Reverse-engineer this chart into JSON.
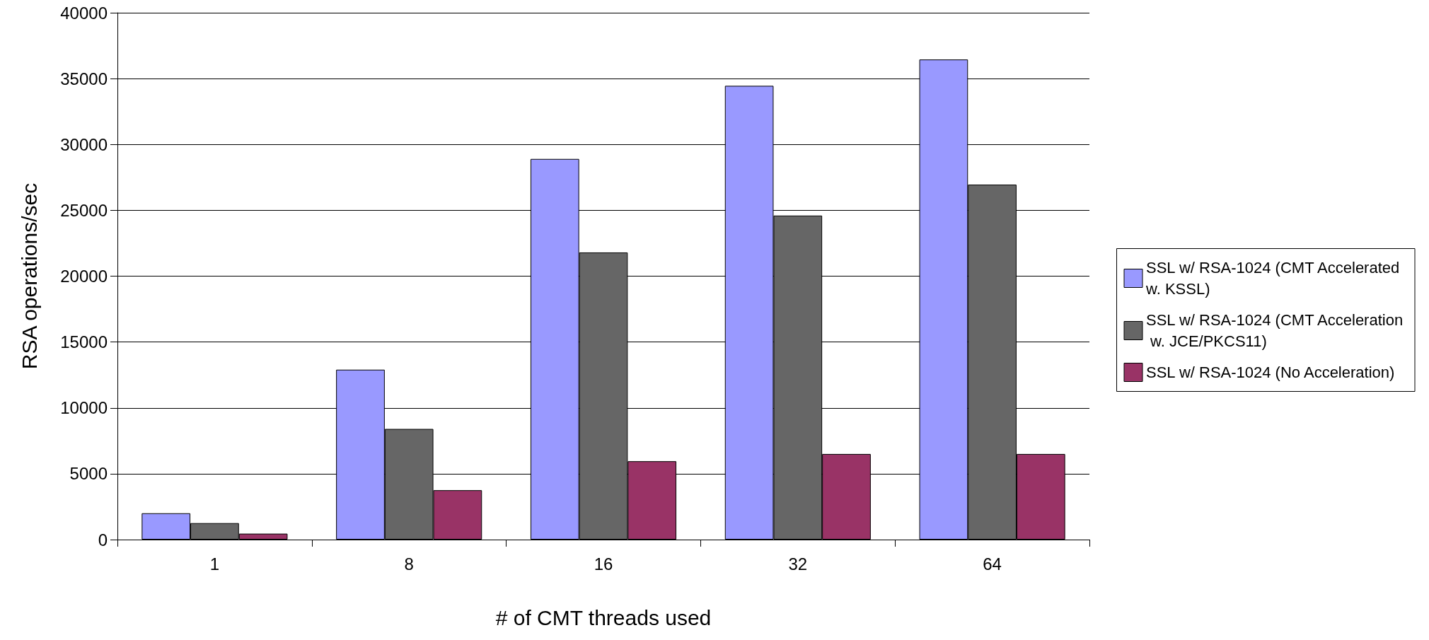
{
  "chart_data": {
    "type": "bar",
    "xlabel": "# of CMT threads used",
    "ylabel": "RSA operations/sec",
    "categories": [
      "1",
      "8",
      "16",
      "32",
      "64"
    ],
    "series": [
      {
        "name": "SSL w/ RSA-1024 (CMT Accelerated w. KSSL)",
        "color": "#9999ff",
        "values": [
          2000,
          12900,
          28900,
          34450,
          36450
        ]
      },
      {
        "name": "SSL w/ RSA-1024 (CMT Acceleration w. JCE/PKCS11)",
        "color": "#666666",
        "values": [
          1250,
          8400,
          21800,
          24600,
          26950
        ]
      },
      {
        "name": "SSL w/ RSA-1024 (No Acceleration)",
        "color": "#993366",
        "values": [
          450,
          3750,
          5950,
          6500,
          6500
        ]
      }
    ],
    "ylim": [
      0,
      40000
    ],
    "yticks": [
      0,
      5000,
      10000,
      15000,
      20000,
      25000,
      30000,
      35000,
      40000
    ],
    "grid": "y",
    "legend": "right"
  }
}
